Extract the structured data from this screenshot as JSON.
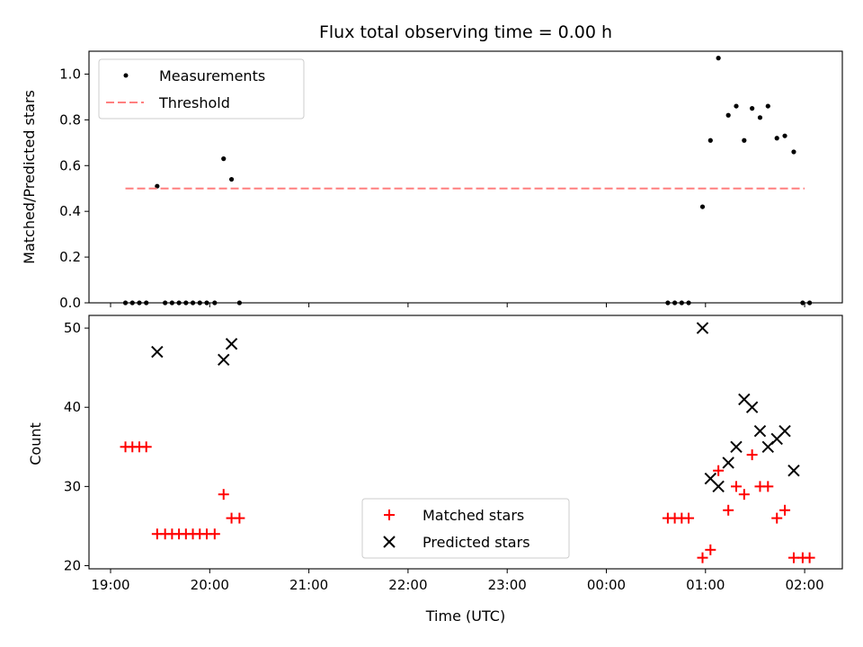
{
  "chart_data": [
    {
      "type": "scatter",
      "title": "Flux total observing time = 0.00 h",
      "ylabel": "Matched/Predicted stars",
      "xlabel": "",
      "ylim": [
        0,
        1.1
      ],
      "yticks": [
        0.0,
        0.2,
        0.4,
        0.6,
        0.8,
        1.0
      ],
      "ytick_labels": [
        "0.0",
        "0.2",
        "0.4",
        "0.6",
        "0.8",
        "1.0"
      ],
      "legend_position": "top-left",
      "series": [
        {
          "name": "Measurements",
          "color": "#000000",
          "marker": "dot",
          "x": [
            19.15,
            19.22,
            19.29,
            19.36,
            19.47,
            19.55,
            19.62,
            19.69,
            19.76,
            19.83,
            19.9,
            19.97,
            20.05,
            20.14,
            20.22,
            20.3,
            0.62,
            0.69,
            0.76,
            0.83,
            0.97,
            1.05,
            1.13,
            1.23,
            1.31,
            1.39,
            1.47,
            1.55,
            1.63,
            1.72,
            1.8,
            1.89,
            1.98,
            2.05
          ],
          "y": [
            0,
            0,
            0,
            0,
            0.51,
            0,
            0,
            0,
            0,
            0,
            0,
            0,
            0,
            0.63,
            0.54,
            0,
            0,
            0,
            0,
            0,
            0.42,
            0.71,
            1.07,
            0.82,
            0.86,
            0.71,
            0.85,
            0.81,
            0.86,
            0.72,
            0.73,
            0.66,
            0,
            0
          ]
        },
        {
          "name": "Threshold",
          "color": "#ff7f7f",
          "style": "dashed",
          "x": [
            19.15,
            2.0
          ],
          "y": [
            0.5,
            0.5
          ]
        }
      ]
    },
    {
      "type": "scatter",
      "title": "",
      "ylabel": "Count",
      "xlabel": "Time (UTC)",
      "ylim": [
        19.6,
        51.6
      ],
      "yticks": [
        20,
        30,
        40,
        50
      ],
      "ytick_labels": [
        "20",
        "30",
        "40",
        "50"
      ],
      "xtick_labels": [
        "19:00",
        "20:00",
        "21:00",
        "22:00",
        "23:00",
        "00:00",
        "01:00",
        "02:00"
      ],
      "legend_position": "bottom-center",
      "series": [
        {
          "name": "Matched stars",
          "color": "#ff0000",
          "marker": "plus",
          "x": [
            19.15,
            19.22,
            19.29,
            19.36,
            19.47,
            19.55,
            19.62,
            19.69,
            19.76,
            19.83,
            19.9,
            19.97,
            20.05,
            20.14,
            20.22,
            20.3,
            0.62,
            0.69,
            0.76,
            0.83,
            0.97,
            1.05,
            1.13,
            1.23,
            1.31,
            1.39,
            1.47,
            1.55,
            1.63,
            1.72,
            1.8,
            1.89,
            1.98,
            2.05
          ],
          "y": [
            35,
            35,
            35,
            35,
            24,
            24,
            24,
            24,
            24,
            24,
            24,
            24,
            24,
            29,
            26,
            26,
            26,
            26,
            26,
            26,
            21,
            22,
            32,
            27,
            30,
            29,
            34,
            30,
            30,
            26,
            27,
            21,
            21,
            21
          ]
        },
        {
          "name": "Predicted stars",
          "color": "#000000",
          "marker": "x",
          "x": [
            19.47,
            20.14,
            20.22,
            0.97,
            1.05,
            1.13,
            1.23,
            1.31,
            1.39,
            1.47,
            1.55,
            1.63,
            1.72,
            1.8,
            1.89
          ],
          "y": [
            47,
            46,
            48,
            50,
            31,
            30,
            33,
            35,
            41,
            40,
            37,
            35,
            36,
            37,
            32
          ]
        }
      ]
    }
  ]
}
